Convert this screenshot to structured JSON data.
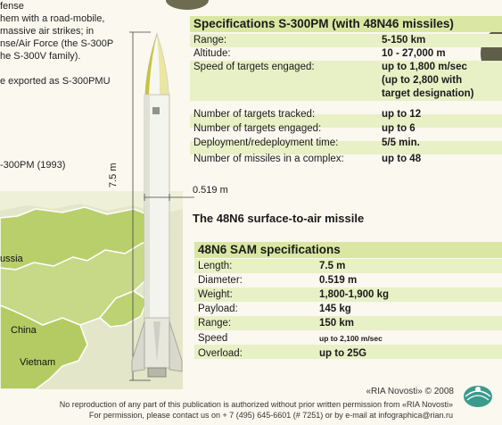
{
  "left_text": {
    "lines": [
      "fense",
      "hem with a road-mobile,",
      "massive air strikes; in",
      "nse/Air Force (the S-300P",
      "he S-300V family).",
      "",
      "e exported as S-300PMU"
    ],
    "year_line": "-300PM (1993)"
  },
  "map": {
    "labels": [
      "ussia",
      "China",
      "Vietnam"
    ]
  },
  "missile": {
    "length_label": "7.5 m",
    "width_label": "0.519 m",
    "caption": "The 48N6 surface-to-air missile"
  },
  "specs_s300": {
    "title": "Specifications S-300PM (with 48N46 missiles)",
    "rows": [
      {
        "label": "Range:",
        "value": "5-150 km"
      },
      {
        "label": "Altitude:",
        "value": "10 - 27,000 m"
      },
      {
        "label": "Speed of targets engaged:",
        "value": "up to 1,800 m/sec",
        "value2": "(up to 2,800 with",
        "value3": "target designation)"
      },
      {
        "label": "Number of targets tracked:",
        "value": "up to 12"
      },
      {
        "label": "Number of targets engaged:",
        "value": "up to 6"
      },
      {
        "label": "Deployment/redeployment time:",
        "value": "5/5 min."
      },
      {
        "label": "Number of missiles in a complex:",
        "value": "up to 48"
      }
    ]
  },
  "specs_48n6": {
    "title": "48N6 SAM specifications",
    "rows": [
      {
        "label": "Length:",
        "value": "7.5 m"
      },
      {
        "label": "Diameter:",
        "value": "0.519 m"
      },
      {
        "label": "Weight:",
        "value": "1,800-1,900 kg"
      },
      {
        "label": "Payload:",
        "value": "145 kg"
      },
      {
        "label": "Range:",
        "value": "150 km"
      },
      {
        "label": "Speed",
        "value": "up to 2,100 m/sec"
      },
      {
        "label": "Overload:",
        "value": "up to 25G"
      }
    ]
  },
  "footer": {
    "credit": "«RIA Novosti» © 2008",
    "line1": "No reproduction of any part of this publication is authorized without prior written permission from «RIA Novosti»",
    "line2": "For permission, please contact us on + 7 (495) 645-6601 (# 7251) or by e-mail at infographica@rian.ru"
  },
  "colors": {
    "band": "#d9e7a3",
    "band_light": "#e8f0c6",
    "map_land": "#b9cf6c",
    "missile_body": "#f4f4ee"
  }
}
